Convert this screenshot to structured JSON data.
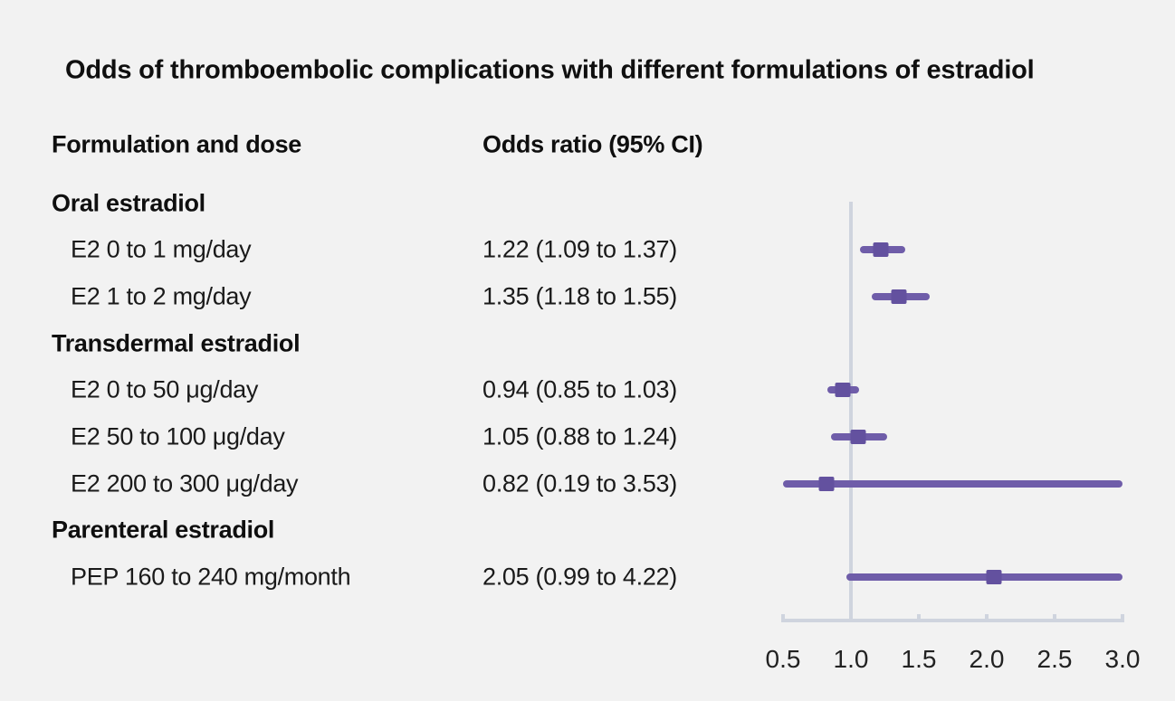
{
  "title": "Odds of thromboembolic complications with different formulations of estradiol",
  "columns": {
    "left": "Formulation and dose",
    "right": "Odds ratio (95% CI)"
  },
  "chart_data": {
    "type": "forest",
    "xlim": [
      0.5,
      3.0
    ],
    "x_ticks": [
      0.5,
      1.0,
      1.5,
      2.0,
      2.5,
      3.0
    ],
    "x_tick_labels": [
      "0.5",
      "1.0",
      "1.5",
      "2.0",
      "2.5",
      "3.0"
    ],
    "reference_line_x": 1.0,
    "grid": false,
    "groups": [
      {
        "label": "Oral estradiol",
        "items": [
          {
            "label": "E2 0 to 1 mg/day",
            "value_text": "1.22 (1.09 to 1.37)",
            "or": 1.22,
            "ci_low": 1.09,
            "ci_high": 1.37
          },
          {
            "label": "E2 1 to 2 mg/day",
            "value_text": "1.35 (1.18 to 1.55)",
            "or": 1.35,
            "ci_low": 1.18,
            "ci_high": 1.55
          }
        ]
      },
      {
        "label": "Transdermal estradiol",
        "items": [
          {
            "label": "E2 0 to 50 μg/day",
            "value_text": "0.94 (0.85 to 1.03)",
            "or": 0.94,
            "ci_low": 0.85,
            "ci_high": 1.03
          },
          {
            "label": "E2 50 to 100 μg/day",
            "value_text": "1.05 (0.88 to 1.24)",
            "or": 1.05,
            "ci_low": 0.88,
            "ci_high": 1.24
          },
          {
            "label": "E2 200 to 300 μg/day",
            "value_text": "0.82 (0.19 to 3.53)",
            "or": 0.82,
            "ci_low": 0.19,
            "ci_high": 3.53
          }
        ]
      },
      {
        "label": "Parenteral estradiol",
        "items": [
          {
            "label": "PEP 160 to 240 mg/month",
            "value_text": "2.05 (0.99 to 4.22)",
            "or": 2.05,
            "ci_low": 0.99,
            "ci_high": 4.22
          }
        ]
      }
    ]
  },
  "colors": {
    "background": "#f2f2f2",
    "text": "#1a1a1a",
    "ci_line": "#6f5da9",
    "marker": "#63519f",
    "axis": "#cfd4de"
  }
}
